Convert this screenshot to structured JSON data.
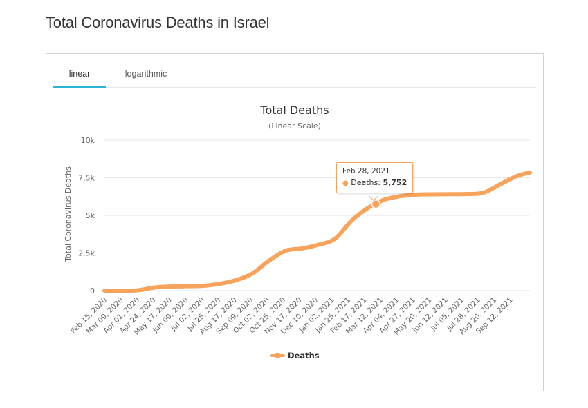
{
  "page": {
    "title": "Total Coronavirus Deaths in Israel"
  },
  "tabs": [
    {
      "label": "linear",
      "active": true
    },
    {
      "label": "logarithmic",
      "active": false
    }
  ],
  "colors": {
    "series": "#f7a35c",
    "tab_accent": "#2ab5d9",
    "grid": "#e6e6e6"
  },
  "tooltip": {
    "date": "Feb 28, 2021",
    "series_label": "Deaths: ",
    "value": "5,752"
  },
  "chart_data": {
    "type": "line",
    "title": "Total Deaths",
    "subtitle": "(Linear Scale)",
    "xlabel": "",
    "ylabel": "Total Coronavirus Deaths",
    "ylim": [
      0,
      10000
    ],
    "yticks": [
      0,
      2500,
      5000,
      7500,
      10000
    ],
    "ytick_labels": [
      "0",
      "2.5k",
      "5k",
      "7.5k",
      "10k"
    ],
    "xtick_labels": [
      "Feb 15, 2020",
      "Mar 09, 2020",
      "Apr 01, 2020",
      "Apr 24, 2020",
      "May 17, 2020",
      "Jun 09, 2020",
      "Jul 02, 2020",
      "Jul 25, 2020",
      "Aug 17, 2020",
      "Sep 09, 2020",
      "Oct 02, 2020",
      "Oct 25, 2020",
      "Nov 17, 2020",
      "Dec 10, 2020",
      "Jan 02, 2021",
      "Jan 25, 2021",
      "Feb 17, 2021",
      "Mar 12, 2021",
      "Apr 04, 2021",
      "Apr 27, 2021",
      "May 20, 2021",
      "Jun 12, 2021",
      "Jul 05, 2021",
      "Jul 28, 2021",
      "Aug 20, 2021",
      "Sep 12, 2021"
    ],
    "grid": true,
    "legend": {
      "position": "bottom",
      "entries": [
        "Deaths"
      ]
    },
    "highlight": {
      "x": "Feb 28, 2021",
      "y": 5752
    },
    "series": [
      {
        "name": "Deaths",
        "x": [
          "2020-02-15",
          "2020-03-09",
          "2020-04-01",
          "2020-04-24",
          "2020-05-17",
          "2020-06-09",
          "2020-07-02",
          "2020-07-25",
          "2020-08-17",
          "2020-09-09",
          "2020-10-02",
          "2020-10-25",
          "2020-11-17",
          "2020-12-10",
          "2021-01-02",
          "2021-01-25",
          "2021-02-17",
          "2021-02-28",
          "2021-03-12",
          "2021-04-04",
          "2021-04-27",
          "2021-05-20",
          "2021-06-12",
          "2021-07-05",
          "2021-07-28",
          "2021-08-20",
          "2021-09-12",
          "2021-10-01"
        ],
        "values": [
          0,
          0,
          20,
          200,
          270,
          290,
          320,
          450,
          700,
          1150,
          2000,
          2650,
          2800,
          3050,
          3450,
          4650,
          5500,
          5752,
          6050,
          6280,
          6380,
          6400,
          6410,
          6420,
          6500,
          7050,
          7600,
          7850
        ]
      }
    ]
  }
}
